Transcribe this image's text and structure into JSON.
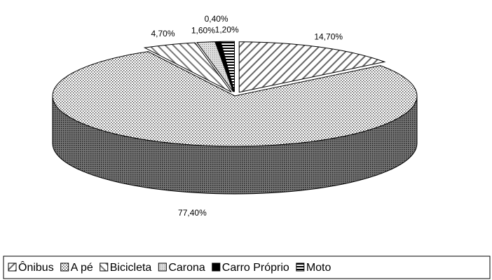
{
  "chart_data": {
    "type": "pie3d",
    "categories": [
      "Ônibus",
      "A pé",
      "Bicicleta",
      "Carona",
      "Carro Próprio",
      "Moto"
    ],
    "values": [
      14.7,
      77.4,
      4.7,
      1.6,
      0.4,
      1.2
    ],
    "value_labels": [
      "14,70%",
      "77,40%",
      "4,70%",
      "1,60%",
      "0,40%",
      "1,20%"
    ],
    "legend": "bottom"
  }
}
